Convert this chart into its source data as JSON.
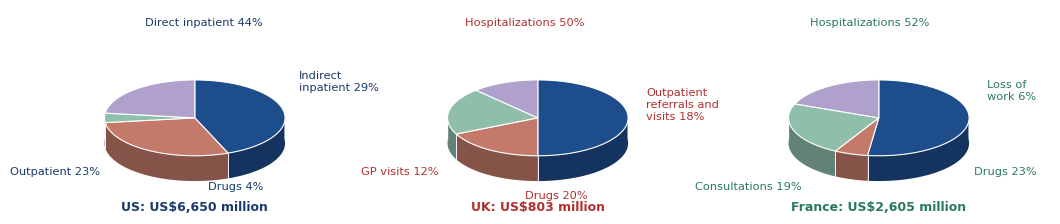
{
  "charts": [
    {
      "title": "US: US$6,650 million",
      "title_color": "#1a3a6b",
      "slices": [
        44,
        29,
        4,
        23
      ],
      "labels": [
        "Direct inpatient 44%",
        "Indirect\ninpatient 29%",
        "Drugs 4%",
        "Outpatient 23%"
      ],
      "label_colors": [
        "#1a3a6b",
        "#1a3a6b",
        "#1a3a6b",
        "#1a3a6b"
      ],
      "colors": [
        "#1e4d8c",
        "#c47a6a",
        "#8fbfaa",
        "#b0a0cc"
      ],
      "label_coords": [
        [
          -0.55,
          1.05,
          "left",
          "bottom"
        ],
        [
          1.15,
          0.45,
          "left",
          "center"
        ],
        [
          0.45,
          -0.65,
          "center",
          "top"
        ],
        [
          -1.05,
          -0.55,
          "right",
          "center"
        ]
      ]
    },
    {
      "title": "UK: US$803 million",
      "title_color": "#b03030",
      "slices": [
        50,
        18,
        20,
        12
      ],
      "labels": [
        "Hospitalizations 50%",
        "Outpatient\nreferrals and\nvisits 18%",
        "Drugs 20%",
        "GP visits 12%"
      ],
      "label_colors": [
        "#b03030",
        "#b03030",
        "#b03030",
        "#b03030"
      ],
      "colors": [
        "#1e4d8c",
        "#c47a6a",
        "#8fbfaa",
        "#b0a0cc"
      ],
      "label_coords": [
        [
          -0.15,
          1.05,
          "center",
          "bottom"
        ],
        [
          1.2,
          0.2,
          "left",
          "center"
        ],
        [
          0.2,
          -0.75,
          "center",
          "top"
        ],
        [
          -1.1,
          -0.55,
          "right",
          "center"
        ]
      ]
    },
    {
      "title": "France: US$2,605 million",
      "title_color": "#2a7a5a",
      "slices": [
        52,
        6,
        23,
        19
      ],
      "labels": [
        "Hospitalizations 52%",
        "Loss of\nwork 6%",
        "Drugs 23%",
        "Consultations 19%"
      ],
      "label_colors": [
        "#2a7a5a",
        "#2a7a5a",
        "#2a7a5a",
        "#2a7a5a"
      ],
      "colors": [
        "#1e4d8c",
        "#c47a6a",
        "#8fbfaa",
        "#b0a0cc"
      ],
      "label_coords": [
        [
          -0.1,
          1.05,
          "center",
          "bottom"
        ],
        [
          1.2,
          0.35,
          "left",
          "center"
        ],
        [
          1.05,
          -0.55,
          "left",
          "center"
        ],
        [
          -0.85,
          -0.65,
          "right",
          "top"
        ]
      ]
    }
  ],
  "bg_color": "#ffffff"
}
